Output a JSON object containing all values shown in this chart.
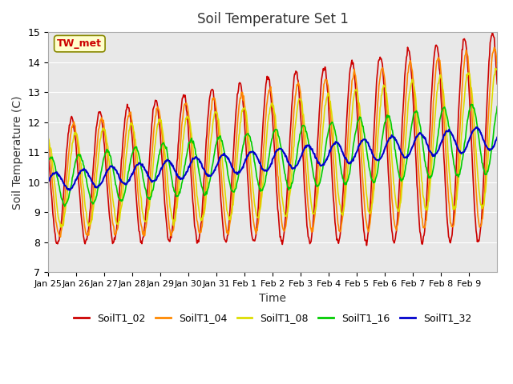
{
  "title": "Soil Temperature Set 1",
  "xlabel": "Time",
  "ylabel": "Soil Temperature (C)",
  "ylim": [
    7.0,
    15.0
  ],
  "yticks": [
    7.0,
    8.0,
    9.0,
    10.0,
    11.0,
    12.0,
    13.0,
    14.0,
    15.0
  ],
  "bg_color": "#e8e8e8",
  "series_colors": {
    "SoilT1_02": "#cc0000",
    "SoilT1_04": "#ff8800",
    "SoilT1_08": "#dddd00",
    "SoilT1_16": "#00cc00",
    "SoilT1_32": "#0000cc"
  },
  "annotation_text": "TW_met",
  "annotation_color": "#cc0000",
  "annotation_bg": "#ffffcc",
  "annotation_border": "#888800",
  "xtick_labels": [
    "Jan 25",
    "Jan 26",
    "Jan 27",
    "Jan 28",
    "Jan 29",
    "Jan 30",
    "Jan 31",
    "Feb 1",
    "Feb 2",
    "Feb 3",
    "Feb 4",
    "Feb 5",
    "Feb 6",
    "Feb 7",
    "Feb 8",
    "Feb 9"
  ],
  "n_days": 16
}
